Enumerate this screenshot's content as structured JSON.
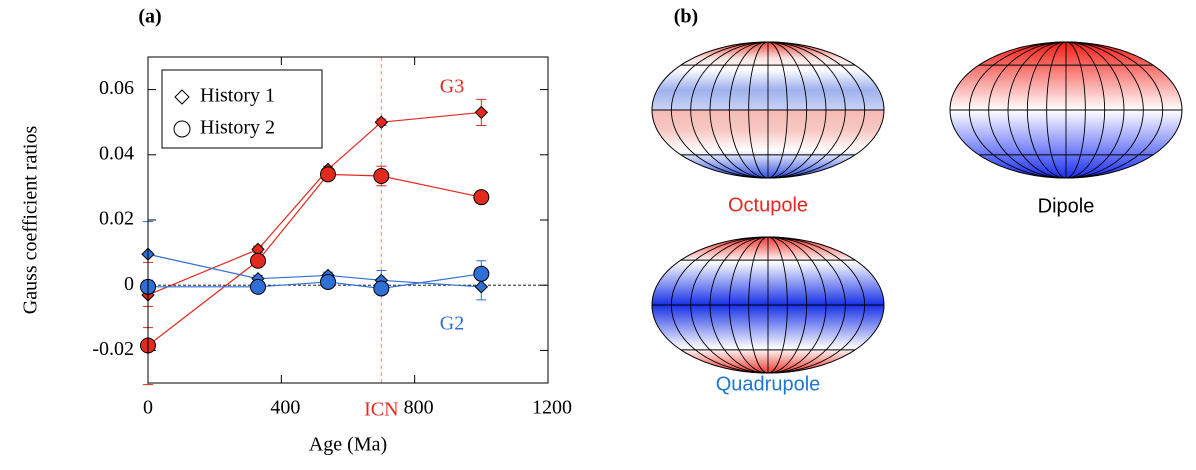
{
  "chart_data": {
    "type": "line",
    "panel_label": "(a)",
    "xlabel": "Age (Ma)",
    "ylabel": "Gauss coefficient ratios",
    "x": [
      0,
      330,
      540,
      700,
      1000
    ],
    "xlim": [
      0,
      1200
    ],
    "xticks": [
      0,
      400,
      800,
      1200
    ],
    "ylim": [
      -0.03,
      0.07
    ],
    "yticks": [
      -0.02,
      0,
      0.02,
      0.04,
      0.06
    ],
    "zero_line": true,
    "legend_position": "upper left",
    "legend": [
      {
        "name": "History 1",
        "marker": "diamond"
      },
      {
        "name": "History 2",
        "marker": "circle"
      }
    ],
    "series": [
      {
        "name": "G3",
        "color": "#e32a1f",
        "histories": [
          {
            "marker": "diamond",
            "values": [
              -0.003,
              0.011,
              0.0355,
              0.05,
              0.053
            ],
            "errors": [
              0.01,
              0.001,
              0.001,
              0.001,
              0.004
            ]
          },
          {
            "marker": "circle",
            "values": [
              -0.0185,
              0.0075,
              0.034,
              0.0335,
              0.027
            ],
            "errors": [
              0.012,
              0.001,
              0.001,
              0.003,
              0.001
            ]
          }
        ]
      },
      {
        "name": "G2",
        "color": "#2f6fd6",
        "histories": [
          {
            "marker": "diamond",
            "values": [
              0.0095,
              0.002,
              0.003,
              0.0015,
              -0.0005
            ],
            "errors": [
              0.01,
              0.001,
              0.001,
              0.003,
              0.004
            ]
          },
          {
            "marker": "circle",
            "values": [
              -0.0005,
              -0.0005,
              0.001,
              -0.001,
              0.0035
            ],
            "errors": [
              0.002,
              0.001,
              0.001,
              0.001,
              0.004
            ]
          }
        ]
      }
    ],
    "annotations": [
      {
        "text": "ICN",
        "x": 700,
        "color": "#e32a1f"
      }
    ]
  },
  "panel_b": {
    "label": "(b)",
    "maps": [
      {
        "label": "Octupole",
        "color": "#e32a1f"
      },
      {
        "label": "Dipole",
        "color": "#000000"
      },
      {
        "label": "Quadrupole",
        "color": "#1f77d0"
      }
    ]
  }
}
